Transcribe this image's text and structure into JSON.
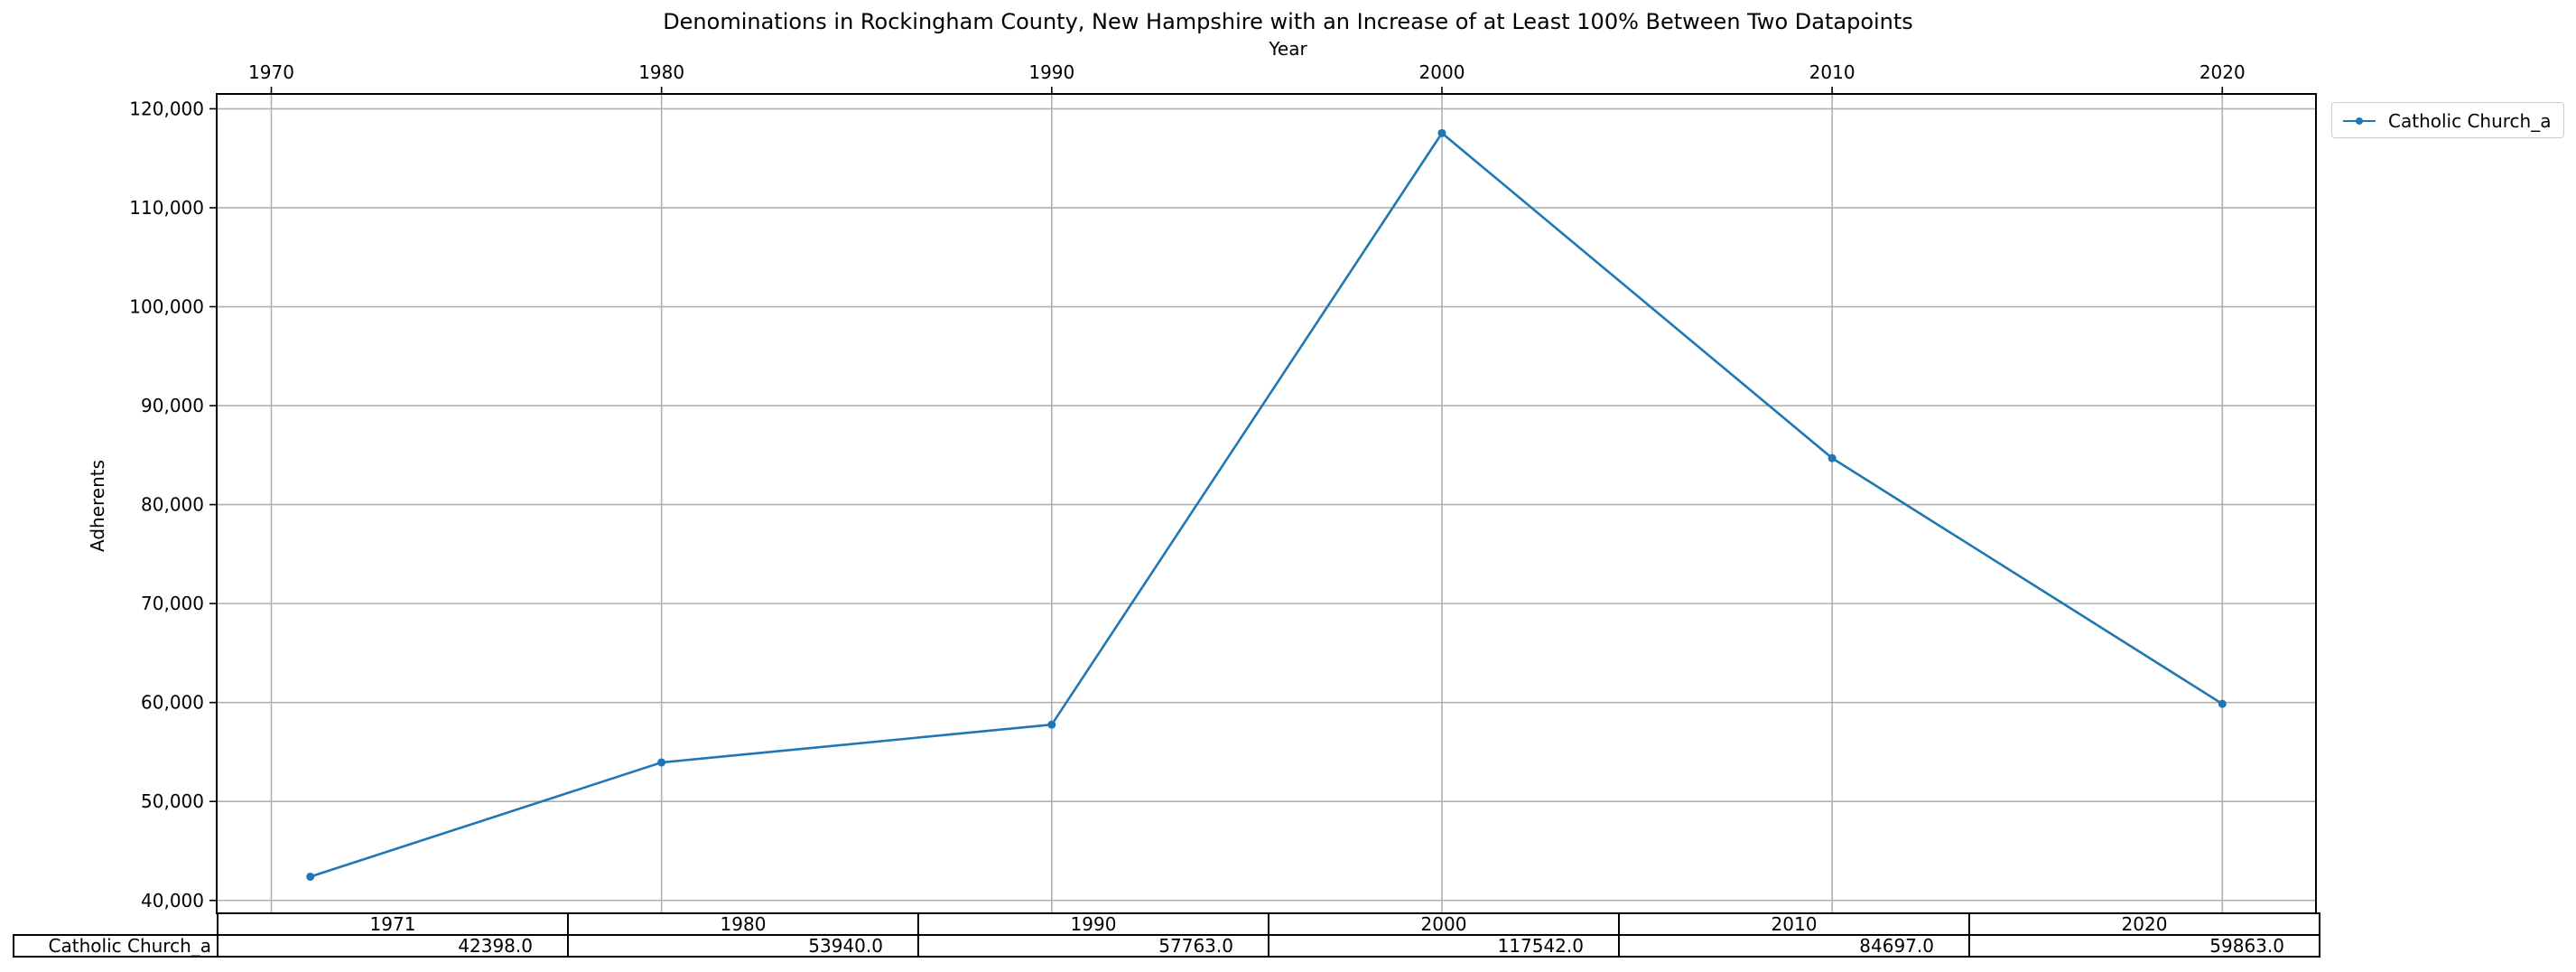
{
  "chart_data": {
    "type": "line",
    "title": "Denominations in Rockingham County, New Hampshire with an Increase of at Least 100% Between Two Datapoints",
    "xlabel": "Year",
    "ylabel": "Adherents",
    "x": [
      1971,
      1980,
      1990,
      2000,
      2010,
      2020
    ],
    "series": [
      {
        "name": "Catholic Church_a",
        "values": [
          42398.0,
          53940.0,
          57763.0,
          117542.0,
          84697.0,
          59863.0
        ],
        "color": "#1f77b4"
      }
    ],
    "xlim": [
      1968.6,
      2022.4
    ],
    "ylim": [
      38700,
      121500
    ],
    "xticks": [
      "1970",
      "1980",
      "1990",
      "2000",
      "2010",
      "2020"
    ],
    "yticks": [
      "40,000",
      "50,000",
      "60,000",
      "70,000",
      "80,000",
      "90,000",
      "100,000",
      "110,000",
      "120,000"
    ],
    "x_axis_position": "top",
    "grid": true,
    "legend_placement": "outside-top-right"
  },
  "table": {
    "columns": [
      "1971",
      "1980",
      "1990",
      "2000",
      "2010",
      "2020"
    ],
    "row_label": "Catholic Church_a",
    "values": [
      "42398.0",
      "53940.0",
      "57763.0",
      "117542.0",
      "84697.0",
      "59863.0"
    ]
  }
}
